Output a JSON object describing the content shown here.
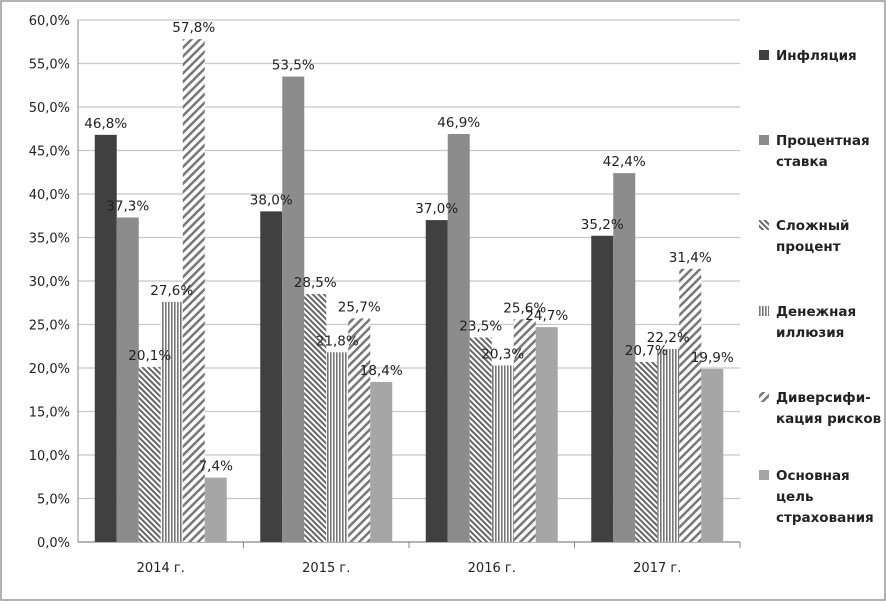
{
  "chart_data": {
    "type": "bar",
    "title": "",
    "xlabel": "",
    "ylabel": "",
    "ylim": [
      0,
      60
    ],
    "yticks": [
      "0,0%",
      "5,0%",
      "10,0%",
      "15,0%",
      "20,0%",
      "25,0%",
      "30,0%",
      "35,0%",
      "40,0%",
      "45,0%",
      "50,0%",
      "55,0%",
      "60,0%"
    ],
    "grid": true,
    "legend_position": "right",
    "categories": [
      "2014 г.",
      "2015 г.",
      "2016 г.",
      "2017 г."
    ],
    "series": [
      {
        "name": "Инфляция",
        "legend_lines": [
          "Инфляция"
        ],
        "fill": "#404040",
        "pattern": "solid",
        "values": [
          46.8,
          38.0,
          37.0,
          35.2
        ],
        "labels": [
          "46,8%",
          "38,0%",
          "37,0%",
          "35,2%"
        ]
      },
      {
        "name": "Процентная ставка",
        "legend_lines": [
          "Процентная",
          "ставка"
        ],
        "fill": "#8c8c8c",
        "pattern": "solid",
        "values": [
          37.3,
          53.5,
          46.9,
          42.4
        ],
        "labels": [
          "37,3%",
          "53,5%",
          "46,9%",
          "42,4%"
        ]
      },
      {
        "name": "Сложный процент",
        "legend_lines": [
          "Сложный",
          "процент"
        ],
        "fill": "#777777",
        "pattern": "fine-diagonal",
        "values": [
          20.1,
          28.5,
          23.5,
          20.7
        ],
        "labels": [
          "20,1%",
          "28,5%",
          "23,5%",
          "20,7%"
        ]
      },
      {
        "name": "Денежная иллюзия",
        "legend_lines": [
          "Денежная",
          "иллюзия"
        ],
        "fill": "#888888",
        "pattern": "vertical",
        "values": [
          27.6,
          21.8,
          20.3,
          22.2
        ],
        "labels": [
          "27,6%",
          "21,8%",
          "20,3%",
          "22,2%"
        ]
      },
      {
        "name": "Диверсификация рисков",
        "legend_lines": [
          "Диверсифи-",
          "кация рисков"
        ],
        "fill": "#888888",
        "pattern": "wide-diagonal",
        "values": [
          57.8,
          25.7,
          25.6,
          31.4
        ],
        "labels": [
          "57,8%",
          "25,7%",
          "25,6%",
          "31,4%"
        ]
      },
      {
        "name": "Основная цель страхования",
        "legend_lines": [
          "Основная",
          "цель",
          "страхования"
        ],
        "fill": "#a6a6a6",
        "pattern": "solid",
        "values": [
          7.4,
          18.4,
          24.7,
          19.9
        ],
        "labels": [
          "7,4%",
          "18,4%",
          "24,7%",
          "19,9%"
        ]
      }
    ]
  }
}
